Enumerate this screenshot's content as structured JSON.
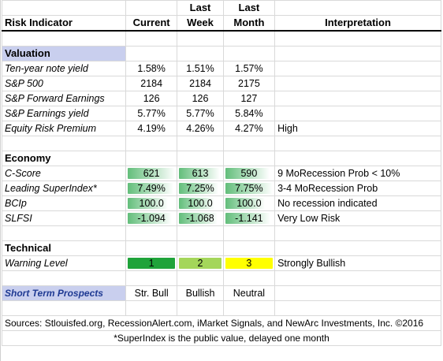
{
  "headers": {
    "risk_indicator": "Risk Indicator",
    "current": "Current",
    "last_week_top": "Last",
    "last_week_bottom": "Week",
    "last_month_top": "Last",
    "last_month_bottom": "Month",
    "interpretation": "Interpretation"
  },
  "sections": {
    "valuation": "Valuation",
    "economy": "Economy",
    "technical": "Technical"
  },
  "valuation_rows": [
    {
      "label": "Ten-year note yield",
      "current": "1.58%",
      "week": "1.51%",
      "month": "1.57%",
      "interp": ""
    },
    {
      "label": "S&P 500",
      "current": "2184",
      "week": "2184",
      "month": "2175",
      "interp": ""
    },
    {
      "label": "S&P Forward Earnings",
      "current": "126",
      "week": "126",
      "month": "127",
      "interp": ""
    },
    {
      "label": "S&P Earnings yield",
      "current": "5.77%",
      "week": "5.77%",
      "month": "5.84%",
      "interp": ""
    },
    {
      "label": "Equity Risk Premium",
      "current": "4.19%",
      "week": "4.26%",
      "month": "4.27%",
      "interp": "High"
    }
  ],
  "economy_rows": [
    {
      "label": "C-Score",
      "current": "621",
      "week": "613",
      "month": "590",
      "interp": "9 MoRecession Prob < 10%"
    },
    {
      "label": "Leading SuperIndex*",
      "current": "7.49%",
      "week": "7.25%",
      "month": "7.75%",
      "interp": "3-4 MoRecession Prob"
    },
    {
      "label": "BCIp",
      "current": "100.0",
      "week": "100.0",
      "month": "100.0",
      "interp": "No recession indicated"
    },
    {
      "label": "SLFSI",
      "current": "-1.094",
      "week": "-1.068",
      "month": "-1.141",
      "interp": "Very Low Risk"
    }
  ],
  "technical_row": {
    "label": "Warning Level",
    "current": "1",
    "week": "2",
    "month": "3",
    "interp": "Strongly Bullish"
  },
  "prospects_row": {
    "label": "Short Term Prospects",
    "current": "Str. Bull",
    "week": "Bullish",
    "month": "Neutral"
  },
  "footer": {
    "sources": "Sources: Stlouisfed.org, RecessionAlert.com, iMarket Signals, and NewArc Investments, Inc. ©2016",
    "note": "*SuperIndex is the public value, delayed one month"
  },
  "colors": {
    "section_bg": "#c9cfee",
    "bar_green": "#63be7b",
    "warn_green_dark": "#1fa33a",
    "warn_green_light": "#a4d65a",
    "warn_yellow": "#ffff00",
    "prospects_text": "#1f3a93"
  }
}
